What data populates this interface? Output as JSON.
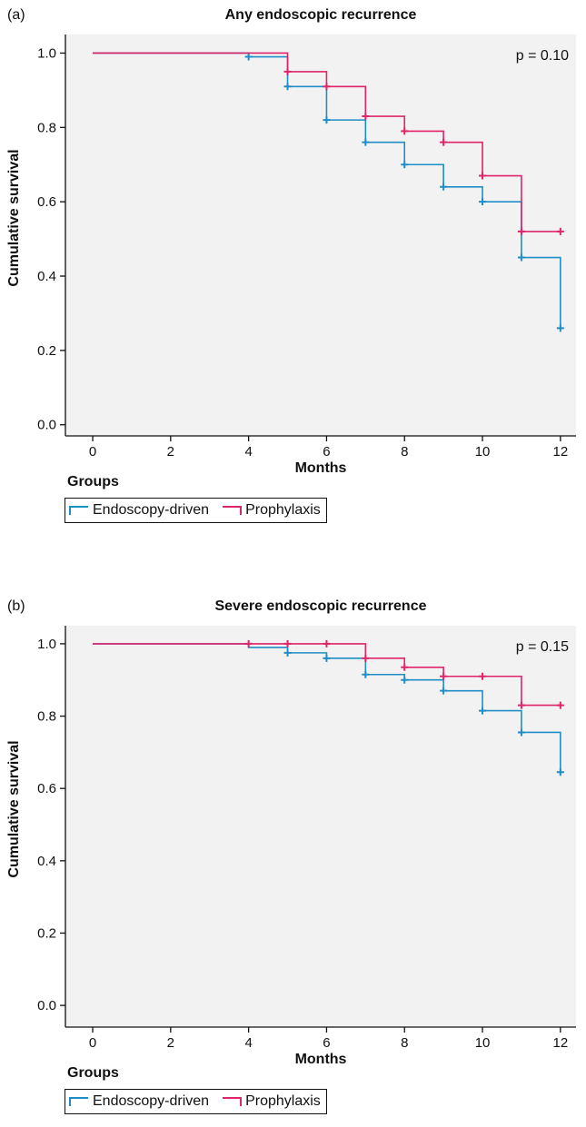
{
  "colors": {
    "endoscopy": "#1f8dc6",
    "prophylaxis": "#e0246a",
    "plot_bg": "#f2f2f2"
  },
  "chart_data": [
    {
      "type": "line",
      "panel_label": "(a)",
      "title": "Any endoscopic recurrence",
      "xlabel": "Months",
      "ylabel": "Cumulative survival",
      "xlim": [
        -0.7,
        12.4
      ],
      "ylim": [
        -0.03,
        1.05
      ],
      "xticks": [
        0,
        2,
        4,
        6,
        8,
        10,
        12
      ],
      "yticks": [
        "0.0",
        "0.2",
        "0.4",
        "0.6",
        "0.8",
        "1.0"
      ],
      "annotation": "p = 0.10",
      "legend": {
        "title": "Groups",
        "placement": "below",
        "entries": [
          "Endoscopy-driven",
          "Prophylaxis"
        ]
      },
      "series": [
        {
          "name": "Endoscopy-driven",
          "color": "#1f8dc6",
          "steps": [
            [
              0,
              1.0
            ],
            [
              4,
              0.99
            ],
            [
              5,
              0.91
            ],
            [
              6,
              0.82
            ],
            [
              7,
              0.76
            ],
            [
              8,
              0.7
            ],
            [
              9,
              0.64
            ],
            [
              10,
              0.6
            ],
            [
              11,
              0.45
            ],
            [
              12,
              0.26
            ]
          ],
          "censored": [
            [
              4,
              0.99
            ],
            [
              5,
              0.91
            ],
            [
              6,
              0.82
            ],
            [
              7,
              0.76
            ],
            [
              8,
              0.7
            ],
            [
              9,
              0.64
            ],
            [
              10,
              0.6
            ],
            [
              11,
              0.45
            ],
            [
              12,
              0.26
            ]
          ]
        },
        {
          "name": "Prophylaxis",
          "color": "#e0246a",
          "steps": [
            [
              0,
              1.0
            ],
            [
              5,
              0.95
            ],
            [
              6,
              0.91
            ],
            [
              7,
              0.83
            ],
            [
              8,
              0.79
            ],
            [
              9,
              0.76
            ],
            [
              10,
              0.67
            ],
            [
              11,
              0.52
            ],
            [
              12,
              0.52
            ]
          ],
          "censored": [
            [
              5,
              0.95
            ],
            [
              6,
              0.91
            ],
            [
              7,
              0.83
            ],
            [
              8,
              0.79
            ],
            [
              9,
              0.76
            ],
            [
              10,
              0.67
            ],
            [
              11,
              0.52
            ],
            [
              12,
              0.52
            ]
          ]
        }
      ]
    },
    {
      "type": "line",
      "panel_label": "(b)",
      "title": "Severe endoscopic recurrence",
      "xlabel": "Months",
      "ylabel": "Cumulative survival",
      "xlim": [
        -0.7,
        12.4
      ],
      "ylim": [
        -0.06,
        1.05
      ],
      "xticks": [
        0,
        2,
        4,
        6,
        8,
        10,
        12
      ],
      "yticks": [
        "0.0",
        "0.2",
        "0.4",
        "0.6",
        "0.8",
        "1.0"
      ],
      "annotation": "p = 0.15",
      "legend": {
        "title": "Groups",
        "placement": "below",
        "entries": [
          "Endoscopy-driven",
          "Prophylaxis"
        ]
      },
      "series": [
        {
          "name": "Endoscopy-driven",
          "color": "#1f8dc6",
          "steps": [
            [
              0,
              1.0
            ],
            [
              4,
              0.99
            ],
            [
              5,
              0.975
            ],
            [
              6,
              0.96
            ],
            [
              7,
              0.915
            ],
            [
              8,
              0.9
            ],
            [
              9,
              0.87
            ],
            [
              10,
              0.815
            ],
            [
              11,
              0.755
            ],
            [
              12,
              0.645
            ]
          ],
          "censored": [
            [
              5,
              0.975
            ],
            [
              6,
              0.96
            ],
            [
              7,
              0.915
            ],
            [
              8,
              0.9
            ],
            [
              9,
              0.87
            ],
            [
              10,
              0.815
            ],
            [
              11,
              0.755
            ],
            [
              12,
              0.645
            ]
          ]
        },
        {
          "name": "Prophylaxis",
          "color": "#e0246a",
          "steps": [
            [
              0,
              1.0
            ],
            [
              7,
              0.96
            ],
            [
              8,
              0.935
            ],
            [
              9,
              0.91
            ],
            [
              10,
              0.91
            ],
            [
              11,
              0.83
            ],
            [
              12,
              0.83
            ]
          ],
          "censored": [
            [
              4,
              1.0
            ],
            [
              5,
              1.0
            ],
            [
              6,
              1.0
            ],
            [
              7,
              0.96
            ],
            [
              8,
              0.935
            ],
            [
              9,
              0.91
            ],
            [
              10,
              0.91
            ],
            [
              11,
              0.83
            ],
            [
              12,
              0.83
            ]
          ]
        }
      ]
    }
  ]
}
